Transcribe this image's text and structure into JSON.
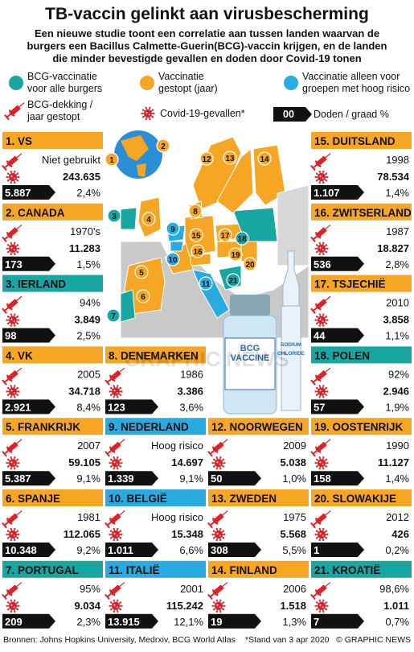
{
  "header": {
    "title": "TB-vaccin gelinkt aan virusbescherming",
    "subtitle": [
      "Een nieuwe studie toont een correlatie aan tussen landen waarvan de",
      "burgers een Bacillus Calmette-Guerin(BCG)-vaccin krijgen, en de landen",
      "die minder bevestigde gevallen en doden door Covid-19 tonen"
    ]
  },
  "legend": {
    "all": {
      "label": [
        "BCG-vaccinatie",
        "voor alle burgers"
      ],
      "color": "#17a6a2"
    },
    "stopped": {
      "label": [
        "Vaccinatie",
        "gestopt (jaar)"
      ],
      "color": "#f6a623"
    },
    "risk": {
      "label": [
        "Vaccinatie alleen voor",
        "groepen met hoog risico"
      ],
      "color": "#29abe2"
    },
    "coverage": [
      "BCG-dekking /",
      "jaar gestopt"
    ],
    "cases": "Covid-19-gevallen*",
    "box": "00",
    "deaths": "Doden / graad %"
  },
  "countries": [
    {
      "marker": "1",
      "name": "1. VS",
      "color": "#f6a623",
      "bcg": "Niet gebruikt",
      "cases": "243.635",
      "deaths": "5.887",
      "rate": "2,4%"
    },
    {
      "marker": "2",
      "name": "2. CANADA",
      "color": "#f6a623",
      "bcg": "1970's",
      "cases": "11.283",
      "deaths": "173",
      "rate": "1,5%"
    },
    {
      "marker": "3",
      "name": "3. IERLAND",
      "color": "#17a6a2",
      "bcg": "94%",
      "cases": "3.849",
      "deaths": "98",
      "rate": "2,5%"
    },
    {
      "marker": "4",
      "name": "4. VK",
      "color": "#f6a623",
      "bcg": "2005",
      "cases": "34.718",
      "deaths": "2.921",
      "rate": "8,4%"
    },
    {
      "marker": "5",
      "name": "5. FRANKRIJK",
      "color": "#f6a623",
      "bcg": "2007",
      "cases": "59.105",
      "deaths": "5.387",
      "rate": "9,1%"
    },
    {
      "marker": "6",
      "name": "6. SPANJE",
      "color": "#f6a623",
      "bcg": "1981",
      "cases": "112.065",
      "deaths": "10.348",
      "rate": "9,2%"
    },
    {
      "marker": "7",
      "name": "7. PORTUGAL",
      "color": "#17a6a2",
      "bcg": "95%",
      "cases": "9.034",
      "deaths": "209",
      "rate": "2,3%"
    },
    {
      "marker": "8",
      "name": "8. DENEMARKEN",
      "color": "#f6a623",
      "bcg": "1986",
      "cases": "3.386",
      "deaths": "123",
      "rate": "3,6%"
    },
    {
      "marker": "9",
      "name": "9. NEDERLAND",
      "color": "#29abe2",
      "bcg": "Hoog risico",
      "cases": "14.697",
      "deaths": "1.339",
      "rate": "9,1%"
    },
    {
      "marker": "10",
      "name": "10. BELGIË",
      "color": "#29abe2",
      "bcg": "Hoog risico",
      "cases": "15.348",
      "deaths": "1.011",
      "rate": "6,6%"
    },
    {
      "marker": "11",
      "name": "11. ITALIË",
      "color": "#29abe2",
      "bcg": "2001",
      "cases": "115.242",
      "deaths": "13.915",
      "rate": "12,1%"
    },
    {
      "marker": "12",
      "name": "12. NOORWEGEN",
      "color": "#f6a623",
      "bcg": "2009",
      "cases": "5.038",
      "deaths": "50",
      "rate": "1,0%"
    },
    {
      "marker": "13",
      "name": "13. ZWEDEN",
      "color": "#f6a623",
      "bcg": "1975",
      "cases": "5.568",
      "deaths": "308",
      "rate": "5,5%"
    },
    {
      "marker": "14",
      "name": "14. FINLAND",
      "color": "#f6a623",
      "bcg": "2006",
      "cases": "1.518",
      "deaths": "19",
      "rate": "1,3%"
    },
    {
      "marker": "15",
      "name": "15. DUITSLAND",
      "color": "#f6a623",
      "bcg": "1998",
      "cases": "78.534",
      "deaths": "1.107",
      "rate": "1,4%"
    },
    {
      "marker": "16",
      "name": "16. ZWITSERLAND",
      "color": "#f6a623",
      "bcg": "1987",
      "cases": "18.827",
      "deaths": "536",
      "rate": "2,8%"
    },
    {
      "marker": "17",
      "name": "17. TSJECHIË",
      "color": "#f6a623",
      "bcg": "2010",
      "cases": "3.858",
      "deaths": "44",
      "rate": "1,1%"
    },
    {
      "marker": "18",
      "name": "18. POLEN",
      "color": "#17a6a2",
      "bcg": "92%",
      "cases": "2.946",
      "deaths": "57",
      "rate": "1,9%"
    },
    {
      "marker": "19",
      "name": "19. OOSTENRIJK",
      "color": "#f6a623",
      "bcg": "1990",
      "cases": "11.127",
      "deaths": "158",
      "rate": "1,4%"
    },
    {
      "marker": "20",
      "name": "20. SLOWAKIJE",
      "color": "#f6a623",
      "bcg": "2012",
      "cases": "426",
      "deaths": "1",
      "rate": "0,2%"
    },
    {
      "marker": "21",
      "name": "21. KROATIË",
      "color": "#17a6a2",
      "bcg": "98,6%",
      "cases": "1.011",
      "deaths": "7",
      "rate": "0,7%"
    }
  ],
  "vial": {
    "label": [
      "BCG",
      "VACCINE"
    ],
    "ampoule": [
      "SODIUM",
      "CHLORIDE"
    ]
  },
  "watermark": "GRAPHIC NEWS",
  "footer": {
    "sources": "Bronnen: Johns Hopkins University, Medrxiv, BCG World Atlas",
    "note": "*Stand van 3 apr 2020",
    "credit": "© GRAPHIC NEWS"
  }
}
